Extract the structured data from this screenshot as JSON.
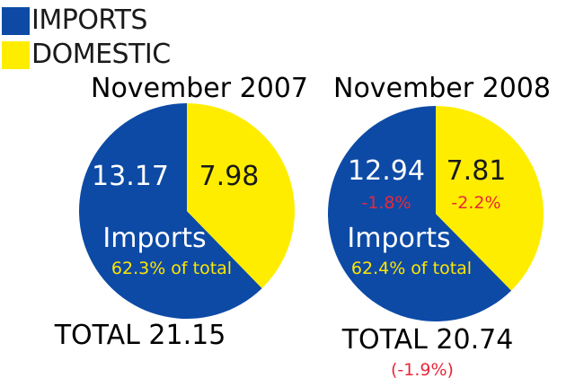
{
  "colors": {
    "imports": "#0d4aa6",
    "domestic": "#ffed00",
    "change": "#e8283a",
    "share": "#ffe600"
  },
  "legend": [
    {
      "label": "IMPORTS",
      "color": "#0d4aa6"
    },
    {
      "label": "DOMESTIC",
      "color": "#ffed00"
    }
  ],
  "chart_data": [
    {
      "type": "pie",
      "title": "November 2007",
      "slices": [
        {
          "name": "IMPORTS",
          "value": 13.17,
          "label": "13.17",
          "change": ""
        },
        {
          "name": "DOMESTIC",
          "value": 7.98,
          "label": "7.98",
          "change": ""
        }
      ],
      "inner_label": "Imports",
      "share_label": "62.3% of total",
      "total_label": "TOTAL 21.15",
      "total_change": ""
    },
    {
      "type": "pie",
      "title": "November 2008",
      "slices": [
        {
          "name": "IMPORTS",
          "value": 12.94,
          "label": "12.94",
          "change": "-1.8%"
        },
        {
          "name": "DOMESTIC",
          "value": 7.81,
          "label": "7.81",
          "change": "-2.2%"
        }
      ],
      "inner_label": "Imports",
      "share_label": "62.4% of total",
      "total_label": "TOTAL 20.74",
      "total_change": "(-1.9%)"
    }
  ]
}
